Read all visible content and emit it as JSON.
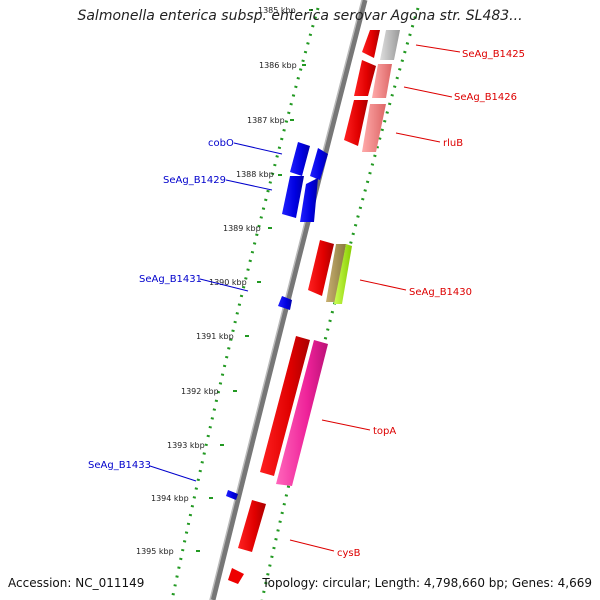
{
  "title": "Salmonella enterica subsp. enterica serovar Agona str. SL483...",
  "accession": "Accession: NC_011149",
  "topology": "Topology: circular; Length: 4,798,660 bp; Genes: 4,669",
  "ruler_labels": [
    "1385 kbp",
    "1386 kbp",
    "1387 kbp",
    "1388 kbp",
    "1389 kbp",
    "1390 kbp",
    "1391 kbp",
    "1392 kbp",
    "1393 kbp",
    "1394 kbp",
    "1395 kbp"
  ],
  "genes_right": [
    {
      "name": "SeAg_B1425",
      "color": "#dd0000"
    },
    {
      "name": "SeAg_B1426",
      "color": "#dd0000"
    },
    {
      "name": "rluB",
      "color": "#dd0000"
    },
    {
      "name": "SeAg_B1430",
      "color": "#dd0000"
    },
    {
      "name": "topA",
      "color": "#dd0000"
    },
    {
      "name": "cysB",
      "color": "#dd0000"
    }
  ],
  "genes_left": [
    {
      "name": "cobO",
      "color": "#0000cc"
    },
    {
      "name": "SeAg_B1429",
      "color": "#0000cc"
    },
    {
      "name": "SeAg_B1431",
      "color": "#0000cc"
    },
    {
      "name": "SeAg_B1433",
      "color": "#0000cc"
    }
  ],
  "colors": {
    "forward_gene": "#ff0000",
    "reverse_gene": "#0000ff",
    "backbone": "#888888",
    "ruler_dots": "#229922",
    "label_right": "#dd0000",
    "label_left": "#0000cc"
  }
}
